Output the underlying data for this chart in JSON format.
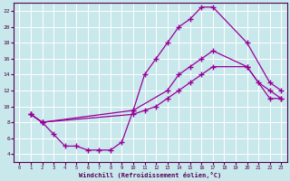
{
  "xlabel": "Windchill (Refroidissement éolien,°C)",
  "bg_color": "#c8e8ec",
  "line_color": "#990099",
  "grid_color": "#b0d8dc",
  "ylim": [
    3,
    23
  ],
  "xlim": [
    -0.5,
    23.5
  ],
  "yticks": [
    4,
    6,
    8,
    10,
    12,
    14,
    16,
    18,
    20,
    22
  ],
  "xticks": [
    0,
    1,
    2,
    3,
    4,
    5,
    6,
    7,
    8,
    9,
    10,
    11,
    12,
    13,
    14,
    15,
    16,
    17,
    18,
    19,
    20,
    21,
    22,
    23
  ],
  "line1_x": [
    1,
    2,
    3,
    4,
    5,
    6,
    7,
    8,
    9,
    10,
    13,
    14,
    15,
    16,
    17,
    20,
    21,
    22,
    23
  ],
  "line1_y": [
    9,
    8,
    6.5,
    5,
    5,
    4.5,
    4.5,
    4.5,
    5.5,
    9.5,
    12,
    14,
    15,
    16,
    17,
    15,
    13,
    12,
    11
  ],
  "line2_x": [
    1,
    2,
    10,
    11,
    12,
    13,
    14,
    15,
    16,
    17,
    20,
    22,
    23
  ],
  "line2_y": [
    9,
    8,
    9.5,
    14,
    16,
    18,
    20,
    21,
    22.5,
    22.5,
    18,
    13,
    12
  ],
  "line3_x": [
    1,
    2,
    10,
    11,
    12,
    13,
    14,
    15,
    16,
    17,
    20,
    22,
    23
  ],
  "line3_y": [
    9,
    8,
    9,
    9.5,
    10,
    11,
    12,
    13,
    14,
    15,
    15,
    11,
    11
  ]
}
